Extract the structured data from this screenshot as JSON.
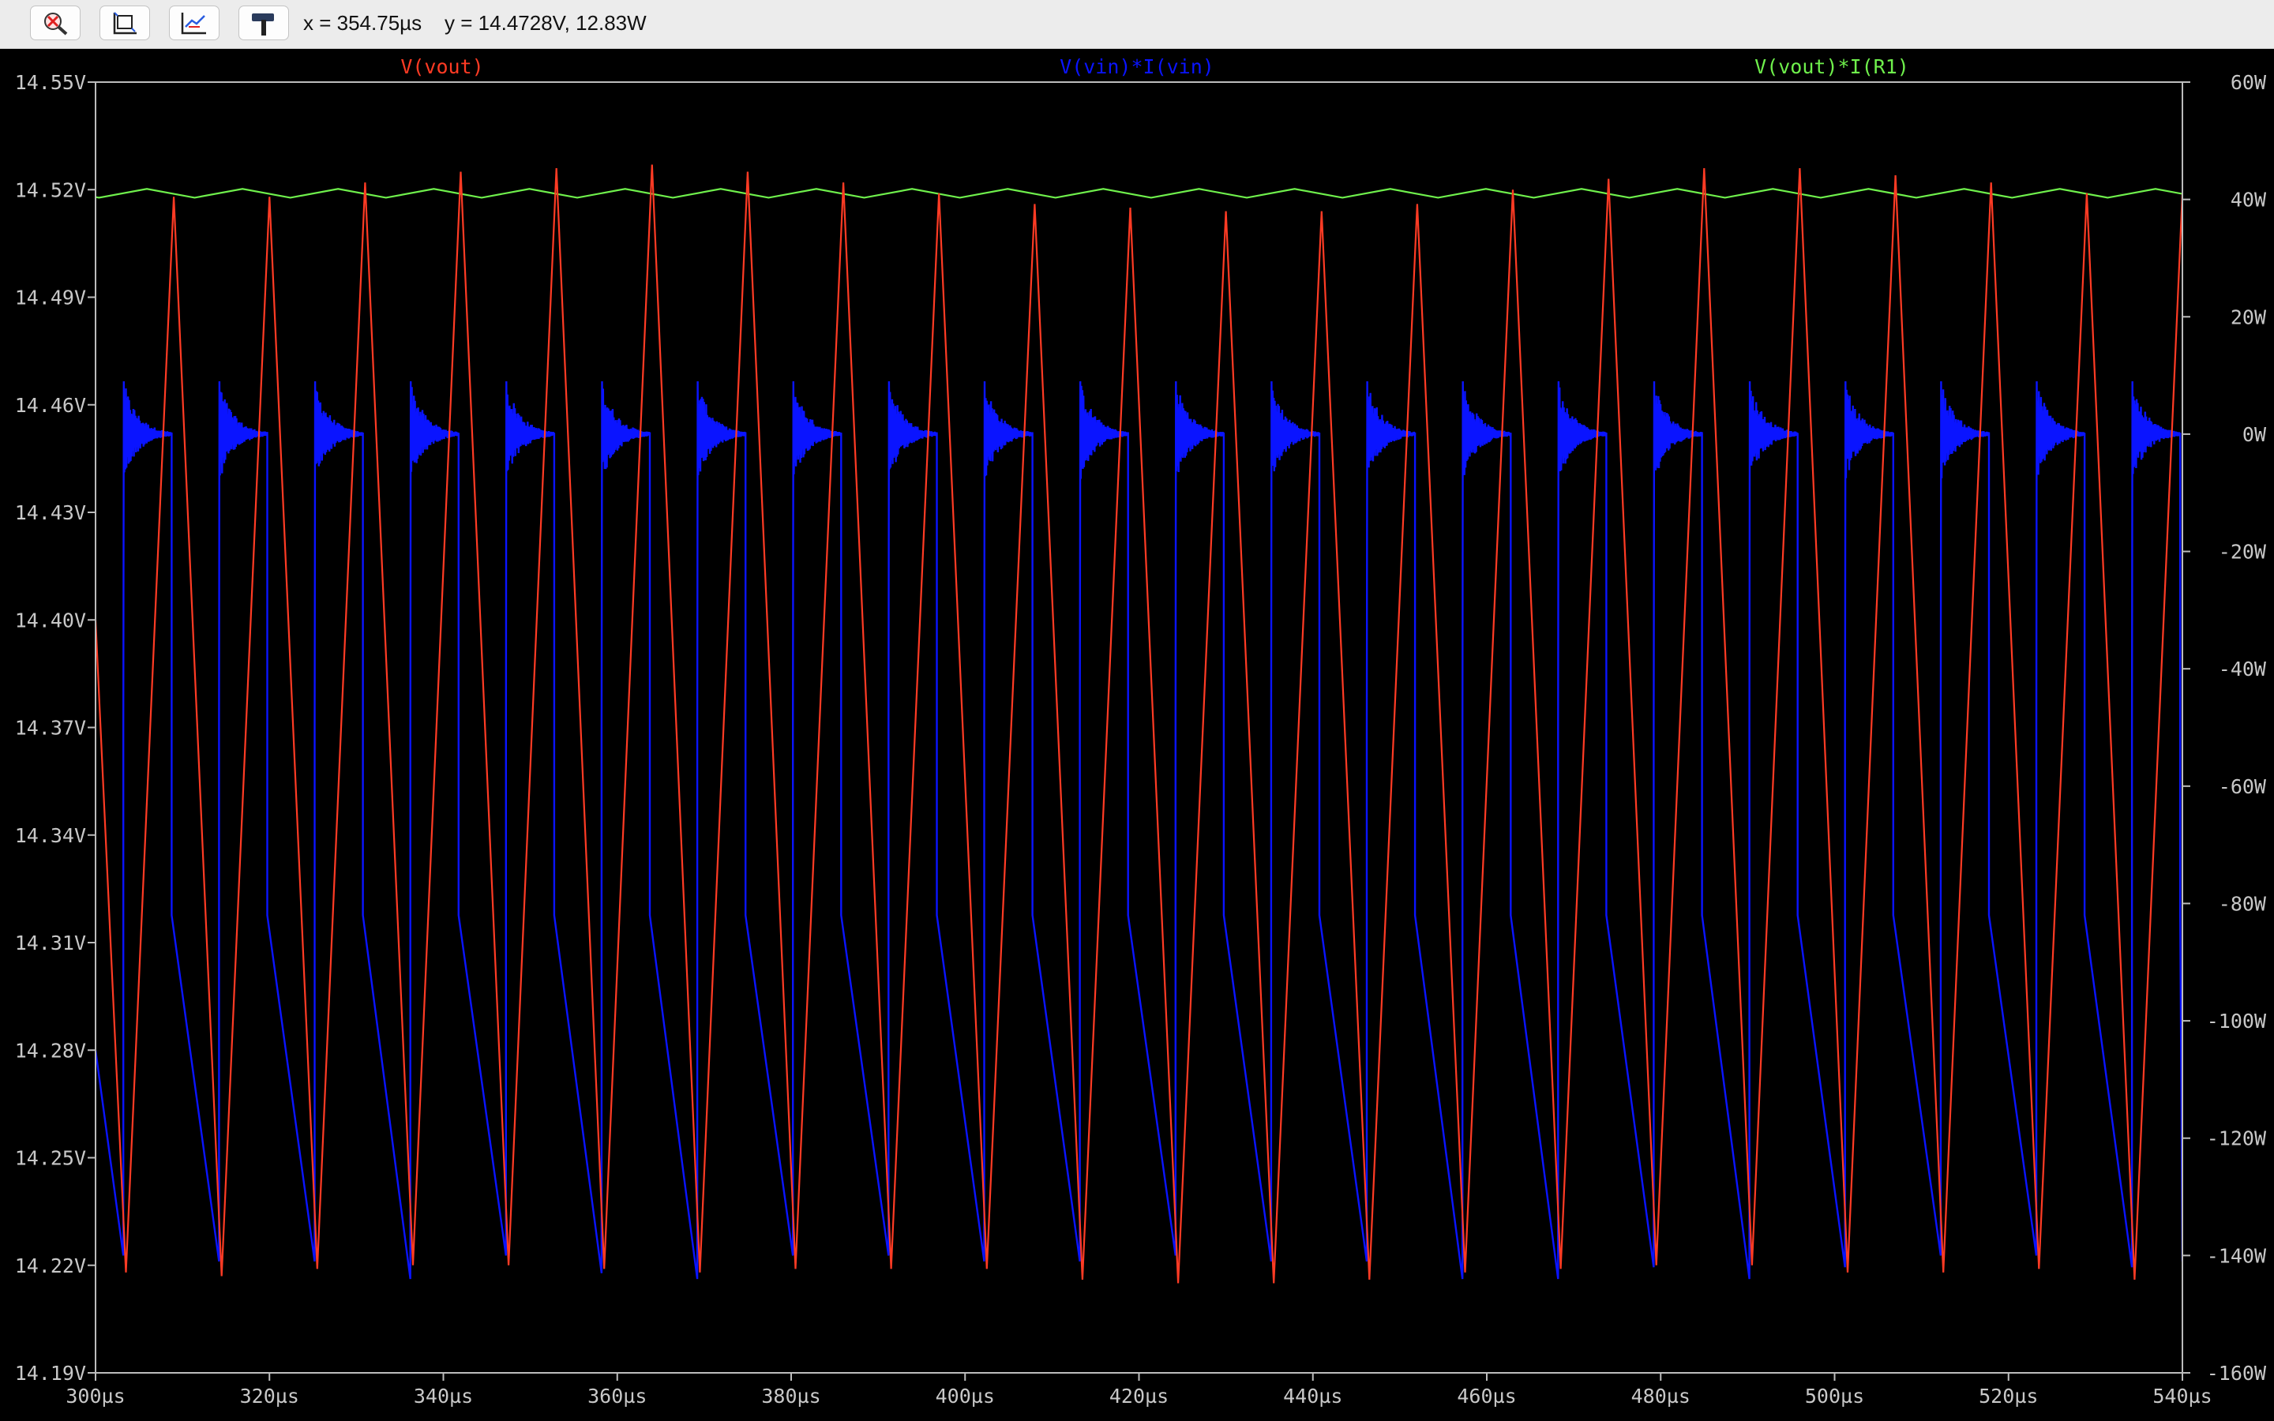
{
  "toolbar": {
    "buttons": [
      {
        "name": "zoom-icon"
      },
      {
        "name": "autorange-icon"
      },
      {
        "name": "cursor-icon"
      },
      {
        "name": "hammer-icon"
      }
    ],
    "readout_x": "x = 354.75µs",
    "readout_y": "y = 14.4728V, 12.83W"
  },
  "chart_data": {
    "type": "line",
    "background": "#000000",
    "grid": false,
    "x_ticks": [
      "300µs",
      "320µs",
      "340µs",
      "360µs",
      "380µs",
      "400µs",
      "420µs",
      "440µs",
      "460µs",
      "480µs",
      "500µs",
      "520µs",
      "540µs"
    ],
    "y_left_ticks": [
      "14.55V",
      "14.52V",
      "14.49V",
      "14.46V",
      "14.43V",
      "14.40V",
      "14.37V",
      "14.34V",
      "14.31V",
      "14.28V",
      "14.25V",
      "14.22V",
      "14.19V"
    ],
    "y_right_ticks": [
      "60W",
      "40W",
      "20W",
      "0W",
      "-20W",
      "-40W",
      "-60W",
      "-80W",
      "-100W",
      "-120W",
      "-140W",
      "-160W"
    ],
    "xlim": [
      300,
      540
    ],
    "ylim_left": [
      14.19,
      14.55
    ],
    "ylim_right": [
      -160,
      60
    ],
    "period_us": 11,
    "series": [
      {
        "name": "V(vout)",
        "axis": "left",
        "color": "#ff3b24",
        "shape": "triangle",
        "start_us": 300,
        "start_value": 14.4,
        "peaks": [
          {
            "t": 309.0,
            "v": 14.518
          },
          {
            "t": 320.0,
            "v": 14.518
          },
          {
            "t": 331.0,
            "v": 14.522
          },
          {
            "t": 342.0,
            "v": 14.525
          },
          {
            "t": 353.0,
            "v": 14.526
          },
          {
            "t": 364.0,
            "v": 14.527
          },
          {
            "t": 375.0,
            "v": 14.525
          },
          {
            "t": 386.0,
            "v": 14.522
          },
          {
            "t": 397.0,
            "v": 14.519
          },
          {
            "t": 408.0,
            "v": 14.516
          },
          {
            "t": 419.0,
            "v": 14.515
          },
          {
            "t": 430.0,
            "v": 14.514
          },
          {
            "t": 441.0,
            "v": 14.514
          },
          {
            "t": 452.0,
            "v": 14.516
          },
          {
            "t": 463.0,
            "v": 14.52
          },
          {
            "t": 474.0,
            "v": 14.523
          },
          {
            "t": 485.0,
            "v": 14.526
          },
          {
            "t": 496.0,
            "v": 14.526
          },
          {
            "t": 507.0,
            "v": 14.524
          },
          {
            "t": 518.0,
            "v": 14.522
          },
          {
            "t": 529.0,
            "v": 14.519
          },
          {
            "t": 540.0,
            "v": 14.519
          }
        ],
        "troughs": [
          {
            "t": 303.5,
            "v": 14.218
          },
          {
            "t": 314.5,
            "v": 14.217
          },
          {
            "t": 325.5,
            "v": 14.219
          },
          {
            "t": 336.5,
            "v": 14.22
          },
          {
            "t": 347.5,
            "v": 14.22
          },
          {
            "t": 358.5,
            "v": 14.219
          },
          {
            "t": 369.5,
            "v": 14.218
          },
          {
            "t": 380.5,
            "v": 14.219
          },
          {
            "t": 391.5,
            "v": 14.219
          },
          {
            "t": 402.5,
            "v": 14.219
          },
          {
            "t": 413.5,
            "v": 14.216
          },
          {
            "t": 424.5,
            "v": 14.215
          },
          {
            "t": 435.5,
            "v": 14.215
          },
          {
            "t": 446.5,
            "v": 14.216
          },
          {
            "t": 457.5,
            "v": 14.218
          },
          {
            "t": 468.5,
            "v": 14.219
          },
          {
            "t": 479.5,
            "v": 14.22
          },
          {
            "t": 490.5,
            "v": 14.22
          },
          {
            "t": 501.5,
            "v": 14.218
          },
          {
            "t": 512.5,
            "v": 14.218
          },
          {
            "t": 523.5,
            "v": 14.219
          },
          {
            "t": 534.5,
            "v": 14.216
          }
        ]
      },
      {
        "name": "V(vin)*I(vin)",
        "axis": "right",
        "color": "#0a14ff",
        "shape": "switching-pulse",
        "start_us": 300,
        "start_value": -105,
        "cycle_start_offset_us": 3.2,
        "rise_to_w": -50,
        "spike_max_w": 9,
        "spike_min_w": -8,
        "settle_w": 0,
        "ringing_duration_us": 5.5,
        "drop_to_w": -82,
        "decay_to_w": -141,
        "cycle_min_w": [
          -140,
          -141,
          -141,
          -144,
          -140,
          -143,
          -144,
          -140,
          -140,
          -141,
          -141,
          -140,
          -141,
          -141,
          -144,
          -144,
          -142,
          -144,
          -142,
          -140,
          -140,
          -142
        ]
      },
      {
        "name": "V(vout)*I(R1)",
        "axis": "right",
        "color": "#6ff04c",
        "shape": "triangle-small",
        "high_w": 41.8,
        "low_w": 40.3,
        "period_us": 11,
        "phase_us": 8.9
      }
    ]
  }
}
